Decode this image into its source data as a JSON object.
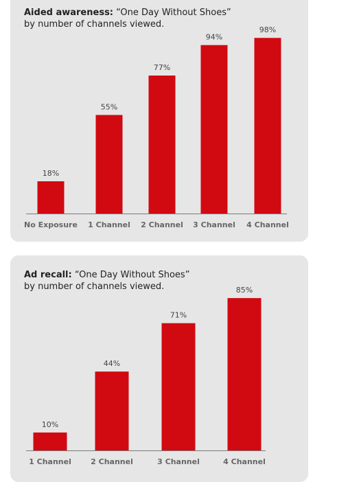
{
  "chart_data": [
    {
      "type": "bar",
      "title_bold": "Aided awareness:",
      "title_rest": "“One Day Without Shoes”",
      "subtitle": "by number of channels viewed.",
      "categories": [
        "No Exposure",
        "1 Channel",
        "2 Channel",
        "3 Channel",
        "4 Channel"
      ],
      "values": [
        18,
        55,
        77,
        94,
        98
      ],
      "value_labels": [
        "18%",
        "55%",
        "77%",
        "94%",
        "98%"
      ],
      "ylim": [
        0,
        100
      ],
      "bar_color": "#d10a11",
      "grid": false
    },
    {
      "type": "bar",
      "title_bold": "Ad recall:",
      "title_rest": "“One Day Without Shoes”",
      "subtitle": "by number of channels viewed.",
      "categories": [
        "1 Channel",
        "2 Channel",
        "3 Channel",
        "4 Channel"
      ],
      "values": [
        10,
        44,
        71,
        85
      ],
      "value_labels": [
        "10%",
        "44%",
        "71%",
        "85%"
      ],
      "ylim": [
        0,
        100
      ],
      "bar_color": "#d10a11",
      "grid": false
    }
  ]
}
